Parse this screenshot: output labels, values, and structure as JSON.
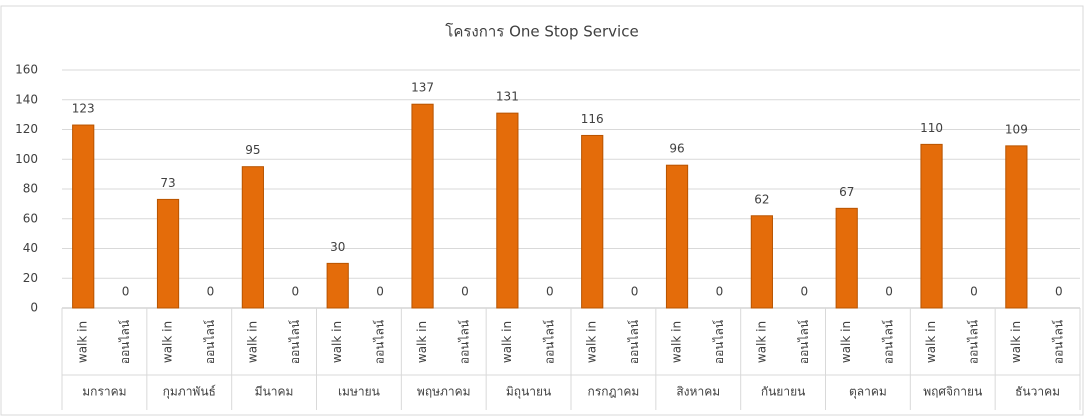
{
  "chart_data": {
    "type": "bar",
    "title": "โครงการ One Stop Service",
    "groups": [
      "มกราคม",
      "กุมภาพันธ์",
      "มีนาคม",
      "เมษายน",
      "พฤษภาคม",
      "มิถุนายน",
      "กรกฎาคม",
      "สิงหาคม",
      "กันยายน",
      "ตุลาคม",
      "พฤศจิกายน",
      "ธันวาคม"
    ],
    "categories": [
      "walk in",
      "ออนไลน์",
      "walk in",
      "ออนไลน์",
      "walk in",
      "ออนไลน์",
      "walk in",
      "ออนไลน์",
      "walk in",
      "ออนไลน์",
      "walk in",
      "ออนไลน์",
      "walk in",
      "ออนไลน์",
      "walk in",
      "ออนไลน์",
      "walk in",
      "ออนไลน์",
      "walk in",
      "ออนไลน์",
      "walk in",
      "ออนไลน์",
      "walk in",
      "ออนไลน์"
    ],
    "values": [
      123,
      0,
      73,
      0,
      95,
      0,
      30,
      0,
      137,
      0,
      131,
      0,
      116,
      0,
      96,
      0,
      62,
      0,
      67,
      0,
      110,
      0,
      109,
      0
    ],
    "color": "#e46c0a",
    "ylim": [
      0,
      160
    ],
    "yticks": [
      0,
      20,
      40,
      60,
      80,
      100,
      120,
      140,
      160
    ],
    "grid": true
  }
}
